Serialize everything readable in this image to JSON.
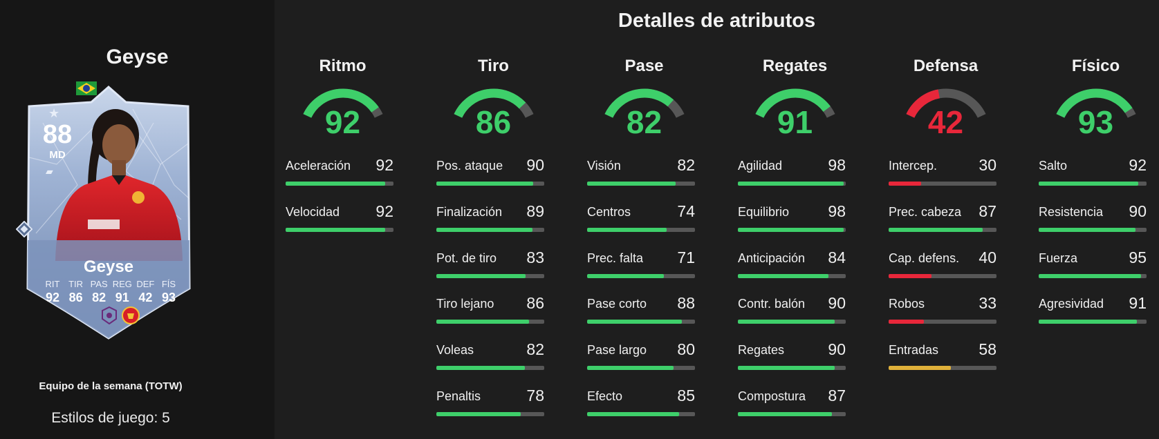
{
  "page_title": "Detalles de atributos",
  "player": {
    "name": "Geyse",
    "card_name": "Geyse",
    "rating": "88",
    "position": "MD",
    "card_type": "Equipo de la semana (TOTW)",
    "playstyles": "Estilos de juego: 5",
    "card_stat_labels": [
      "RIT",
      "TIR",
      "PAS",
      "REG",
      "DEF",
      "FÍS"
    ],
    "card_stat_values": [
      "92",
      "86",
      "82",
      "91",
      "42",
      "93"
    ],
    "badges": [
      "flag-brazil-icon",
      "league-badge-icon",
      "club-crest-icon"
    ]
  },
  "colors": {
    "green": "#3ecf6a",
    "red": "#e8273a",
    "yellow": "#e0b13a",
    "track": "#575757",
    "card_blue": "#8ea4c8"
  },
  "categories": [
    {
      "name": "Ritmo",
      "value": 92,
      "color": "green",
      "attributes": [
        {
          "name": "Aceleración",
          "value": 92,
          "color": "green"
        },
        {
          "name": "Velocidad",
          "value": 92,
          "color": "green"
        }
      ]
    },
    {
      "name": "Tiro",
      "value": 86,
      "color": "green",
      "attributes": [
        {
          "name": "Pos. ataque",
          "value": 90,
          "color": "green"
        },
        {
          "name": "Finalización",
          "value": 89,
          "color": "green"
        },
        {
          "name": "Pot. de tiro",
          "value": 83,
          "color": "green"
        },
        {
          "name": "Tiro lejano",
          "value": 86,
          "color": "green"
        },
        {
          "name": "Voleas",
          "value": 82,
          "color": "green"
        },
        {
          "name": "Penaltis",
          "value": 78,
          "color": "green"
        }
      ]
    },
    {
      "name": "Pase",
      "value": 82,
      "color": "green",
      "attributes": [
        {
          "name": "Visión",
          "value": 82,
          "color": "green"
        },
        {
          "name": "Centros",
          "value": 74,
          "color": "green"
        },
        {
          "name": "Prec. falta",
          "value": 71,
          "color": "green"
        },
        {
          "name": "Pase corto",
          "value": 88,
          "color": "green"
        },
        {
          "name": "Pase largo",
          "value": 80,
          "color": "green"
        },
        {
          "name": "Efecto",
          "value": 85,
          "color": "green"
        }
      ]
    },
    {
      "name": "Regates",
      "value": 91,
      "color": "green",
      "attributes": [
        {
          "name": "Agilidad",
          "value": 98,
          "color": "green"
        },
        {
          "name": "Equilibrio",
          "value": 98,
          "color": "green"
        },
        {
          "name": "Anticipación",
          "value": 84,
          "color": "green"
        },
        {
          "name": "Contr. balón",
          "value": 90,
          "color": "green"
        },
        {
          "name": "Regates",
          "value": 90,
          "color": "green"
        },
        {
          "name": "Compostura",
          "value": 87,
          "color": "green"
        }
      ]
    },
    {
      "name": "Defensa",
      "value": 42,
      "color": "red",
      "attributes": [
        {
          "name": "Intercep.",
          "value": 30,
          "color": "red"
        },
        {
          "name": "Prec. cabeza",
          "value": 87,
          "color": "green"
        },
        {
          "name": "Cap. defens.",
          "value": 40,
          "color": "red"
        },
        {
          "name": "Robos",
          "value": 33,
          "color": "red"
        },
        {
          "name": "Entradas",
          "value": 58,
          "color": "yellow"
        }
      ]
    },
    {
      "name": "Físico",
      "value": 93,
      "color": "green",
      "attributes": [
        {
          "name": "Salto",
          "value": 92,
          "color": "green"
        },
        {
          "name": "Resistencia",
          "value": 90,
          "color": "green"
        },
        {
          "name": "Fuerza",
          "value": 95,
          "color": "green"
        },
        {
          "name": "Agresividad",
          "value": 91,
          "color": "green"
        }
      ]
    }
  ]
}
